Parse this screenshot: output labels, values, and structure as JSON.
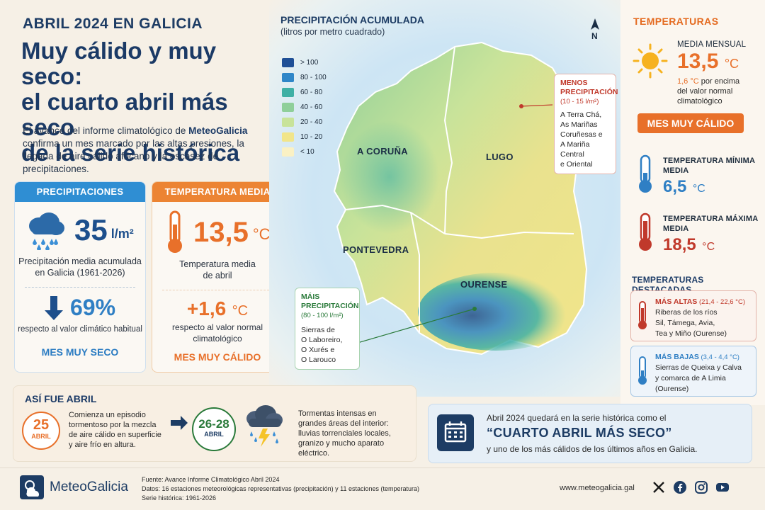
{
  "header": {
    "kicker": "ABRIL 2024 EN GALICIA",
    "headline_1": "Muy cálido y muy seco:",
    "headline_2": "el cuarto abril más seco",
    "headline_3": "de la serie histórica",
    "intro_1": "El avance del informe climatológico de ",
    "intro_brand": "MeteoGalicia",
    "intro_2": " confirma un mes marcado por las altas presiones, la llegada de aire cálido africano y la escasez de precipitaciones."
  },
  "precip_card": {
    "title": "PRECIPITACIONES",
    "value": "35",
    "unit": "l/m²",
    "caption_1": "Precipitación media acumulada",
    "caption_2": "en Galicia (1961-2026)",
    "pct": "69%",
    "pct_caption": "respecto al valor climático habitual",
    "verdict": "MES MUY SECO"
  },
  "temp_card": {
    "title": "TEMPERATURA MEDIA",
    "value": "13,5",
    "unit": "°C",
    "caption_1": "Temperatura media",
    "caption_2": "de abril",
    "delta": "+1,6",
    "delta_unit": "°C",
    "delta_caption_1": "respecto al valor normal",
    "delta_caption_2": "climatológico",
    "verdict": "MES MUY CÁLIDO"
  },
  "map": {
    "title": "PRECIPITACIÓN ACUMULADA",
    "subtitle": "(litros por metro cuadrado)",
    "north": "N",
    "legend": [
      {
        "label": "> 100",
        "color": "#1f4f96"
      },
      {
        "label": "80 - 100",
        "color": "#2f86c8"
      },
      {
        "label": "60 - 80",
        "color": "#3fb0a5"
      },
      {
        "label": "40 - 60",
        "color": "#8fcf9a"
      },
      {
        "label": "20 - 40",
        "color": "#c8e39a"
      },
      {
        "label": "10 - 20",
        "color": "#f1e58a"
      },
      {
        "label": "< 10",
        "color": "#faf1c4"
      }
    ],
    "provinces": {
      "coruna": "A CORUÑA",
      "lugo": "LUGO",
      "pontevedra": "PONTEVEDRA",
      "ourense": "OURENSE"
    },
    "less": {
      "t1": "MENOS",
      "t2": "PRECIPITACIÓN",
      "t3": "(10 - 15 l/m²)",
      "l1": "A Terra Chá,",
      "l2": "As Mariñas",
      "l3": "Coruñesas e",
      "l4": "A Mariña Central",
      "l5": "e Oriental"
    },
    "more": {
      "t1": "MÁIS",
      "t2": "PRECIPITACIÓN",
      "t3": "(80 - 100 l/m²)",
      "l1": "Sierras de",
      "l2": "O Laboreiro,",
      "l3": "O Xurés e",
      "l4": "O Larouco"
    }
  },
  "temps": {
    "title": "TEMPERATURAS",
    "mean_label": "MEDIA MENSUAL",
    "mean_value": "13,5",
    "mean_unit": "°C",
    "mean_delta": "1,6 °C",
    "mean_note_1": " por encima",
    "mean_note_2": "del valor normal",
    "mean_note_3": "climatológico",
    "pill": "MES MUY CÁLIDO",
    "min_label_1": "TEMPERATURA MÍNIMA",
    "min_label_2": "MEDIA",
    "min_value": "6,5",
    "min_unit": "°C",
    "max_label_1": "TEMPERATURA MÁXIMA",
    "max_label_2": "MEDIA",
    "max_value": "18,5",
    "max_unit": "°C",
    "highlights_title": "TEMPERATURAS DESTACADAS",
    "high_title": "MÁS ALTAS",
    "high_range": " (21,4 - 22,6 °C)",
    "high_1": "Riberas de los ríos",
    "high_2": "Sil, Támega, Avia,",
    "high_3": "Tea y Miño (Ourense)",
    "low_title": "MÁS BAJAS",
    "low_range": " (3,4 - 4,4 °C)",
    "low_1": "Sierras de Queixa y Calva",
    "low_2": "y comarca de A Limia",
    "low_3": "(Ourense)"
  },
  "timeline": {
    "title": "ASÍ FUE ABRIL",
    "day1": "25",
    "day1_sub": "ABRIL",
    "text1_1": "Comienza un episodio",
    "text1_2": "tormentoso por la mezcla",
    "text1_3": "de aire cálido en superficie",
    "text1_4": "y aire frío en altura.",
    "day2": "26-28",
    "day2_sub": "ABRIL",
    "text2_1": "Tormentas intensas en",
    "text2_2": "grandes áreas del interior:",
    "text2_3": "lluvias torrenciales locales,",
    "text2_4": "granizo y mucho aparato eléctrico."
  },
  "summary": {
    "line1": "Abril 2024 quedará en la serie histórica como el",
    "quote": "“CUARTO ABRIL MÁS SECO”",
    "line3": "y uno de los más cálidos de los últimos años en Galicia."
  },
  "footer": {
    "brand": "MeteoGalicia",
    "source_1": "Fuente: Avance Informe Climatológico Abril 2024",
    "source_2": "Datos: 16 estaciones meteorológicas representativas (precipitación) y 11 estaciones (temperatura)",
    "source_3": "Serie histórica: 1961-2026",
    "url": "www.meteogalicia.gal"
  },
  "icons": [
    "rain-cloud-icon",
    "arrow-down-icon",
    "thermometer-icon",
    "sun-icon",
    "storm-cloud-icon",
    "calendar-icon",
    "compass-north-icon",
    "x-icon",
    "facebook-icon",
    "instagram-icon",
    "youtube-icon"
  ]
}
